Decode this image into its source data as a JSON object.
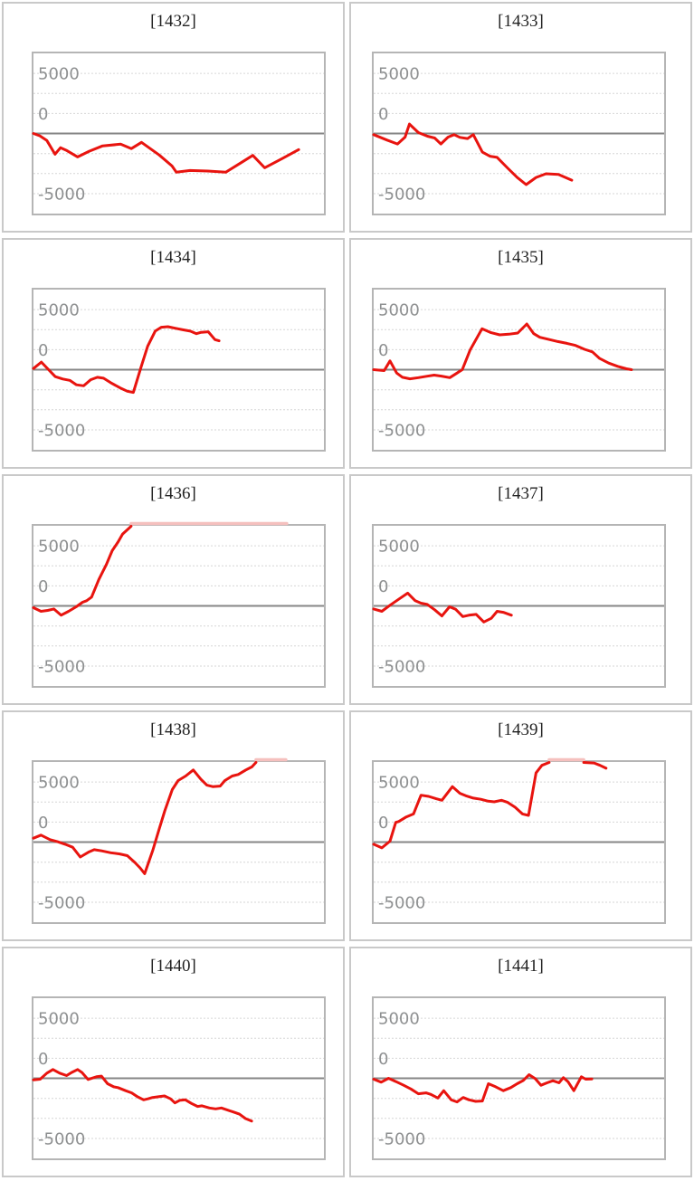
{
  "style": {
    "line_color": "#e8140f",
    "cap_color": "#f5c0be",
    "zero_line_color": "#868686",
    "grid_color": "#d6d6d6",
    "plot_border_color": "#b5b5b5",
    "panel_border_color": "#c9c9c9",
    "tick_color": "#8e9091",
    "title_color": "#222222",
    "background": "#ffffff"
  },
  "axes": {
    "y_tick_labels": [
      "5000",
      "0",
      "-5000"
    ],
    "y_tick_values": [
      5000,
      0,
      -5000
    ],
    "ylim": [
      -6890,
      6890
    ],
    "gridline_count": 7,
    "grid_style": "dotted-horizontal",
    "zero_line": "solid"
  },
  "chart_data": [
    {
      "type": "line",
      "title": "[1432]",
      "segments": [
        [
          [
            0,
            0
          ],
          [
            0.022,
            -200
          ],
          [
            0.046,
            -600
          ],
          [
            0.074,
            -1750
          ],
          [
            0.093,
            -1200
          ],
          [
            0.115,
            -1450
          ],
          [
            0.152,
            -1980
          ],
          [
            0.192,
            -1500
          ],
          [
            0.238,
            -1050
          ],
          [
            0.3,
            -900
          ],
          [
            0.337,
            -1280
          ],
          [
            0.372,
            -750
          ],
          [
            0.433,
            -1820
          ],
          [
            0.477,
            -2750
          ],
          [
            0.492,
            -3280
          ],
          [
            0.539,
            -3130
          ],
          [
            0.6,
            -3180
          ],
          [
            0.662,
            -3280
          ],
          [
            0.712,
            -2510
          ],
          [
            0.755,
            -1850
          ],
          [
            0.796,
            -2900
          ],
          [
            0.858,
            -2100
          ],
          [
            0.913,
            -1360
          ]
        ]
      ],
      "cap_segment": null
    },
    {
      "type": "line",
      "title": "[1433]",
      "segments": [
        [
          [
            0,
            -100
          ],
          [
            0.046,
            -560
          ],
          [
            0.082,
            -890
          ],
          [
            0.108,
            -310
          ],
          [
            0.123,
            800
          ],
          [
            0.154,
            80
          ],
          [
            0.185,
            -230
          ],
          [
            0.21,
            -380
          ],
          [
            0.231,
            -890
          ],
          [
            0.256,
            -310
          ],
          [
            0.277,
            -100
          ],
          [
            0.297,
            -330
          ],
          [
            0.323,
            -430
          ],
          [
            0.343,
            -100
          ],
          [
            0.374,
            -1580
          ],
          [
            0.4,
            -1920
          ],
          [
            0.425,
            -2020
          ],
          [
            0.462,
            -2950
          ],
          [
            0.494,
            -3720
          ],
          [
            0.525,
            -4330
          ],
          [
            0.559,
            -3720
          ],
          [
            0.593,
            -3410
          ],
          [
            0.636,
            -3460
          ],
          [
            0.682,
            -3950
          ]
        ]
      ],
      "cap_segment": null
    },
    {
      "type": "line",
      "title": "[1434]",
      "segments": [
        [
          [
            0,
            100
          ],
          [
            0.027,
            640
          ],
          [
            0.052,
            0
          ],
          [
            0.075,
            -590
          ],
          [
            0.101,
            -790
          ],
          [
            0.125,
            -900
          ],
          [
            0.148,
            -1280
          ],
          [
            0.173,
            -1360
          ],
          [
            0.197,
            -850
          ],
          [
            0.22,
            -640
          ],
          [
            0.241,
            -720
          ],
          [
            0.266,
            -1100
          ],
          [
            0.298,
            -1540
          ],
          [
            0.323,
            -1820
          ],
          [
            0.344,
            -1920
          ],
          [
            0.37,
            200
          ],
          [
            0.393,
            1980
          ],
          [
            0.419,
            3260
          ],
          [
            0.44,
            3590
          ],
          [
            0.463,
            3640
          ],
          [
            0.488,
            3510
          ],
          [
            0.514,
            3380
          ],
          [
            0.54,
            3260
          ],
          [
            0.561,
            3050
          ],
          [
            0.577,
            3160
          ],
          [
            0.602,
            3210
          ],
          [
            0.625,
            2540
          ],
          [
            0.639,
            2440
          ]
        ]
      ],
      "cap_segment": null
    },
    {
      "type": "line",
      "title": "[1435]",
      "segments": [
        [
          [
            0,
            0
          ],
          [
            0.036,
            -80
          ],
          [
            0.056,
            740
          ],
          [
            0.079,
            -280
          ],
          [
            0.099,
            -640
          ],
          [
            0.125,
            -770
          ],
          [
            0.154,
            -670
          ],
          [
            0.182,
            -560
          ],
          [
            0.208,
            -460
          ],
          [
            0.233,
            -540
          ],
          [
            0.262,
            -670
          ],
          [
            0.284,
            -330
          ],
          [
            0.305,
            0
          ],
          [
            0.332,
            1670
          ],
          [
            0.373,
            3460
          ],
          [
            0.404,
            3130
          ],
          [
            0.434,
            2950
          ],
          [
            0.465,
            3000
          ],
          [
            0.496,
            3100
          ],
          [
            0.527,
            3870
          ],
          [
            0.551,
            3050
          ],
          [
            0.572,
            2740
          ],
          [
            0.603,
            2560
          ],
          [
            0.634,
            2380
          ],
          [
            0.665,
            2230
          ],
          [
            0.695,
            2050
          ],
          [
            0.726,
            1720
          ],
          [
            0.753,
            1510
          ],
          [
            0.778,
            950
          ],
          [
            0.809,
            560
          ],
          [
            0.84,
            280
          ],
          [
            0.87,
            80
          ],
          [
            0.888,
            0
          ]
        ]
      ],
      "cap_segment": null
    },
    {
      "type": "line",
      "title": "[1436]",
      "segments": [
        [
          [
            0,
            -150
          ],
          [
            0.026,
            -460
          ],
          [
            0.049,
            -380
          ],
          [
            0.07,
            -260
          ],
          [
            0.095,
            -790
          ],
          [
            0.121,
            -460
          ],
          [
            0.147,
            -80
          ],
          [
            0.169,
            310
          ],
          [
            0.183,
            440
          ],
          [
            0.2,
            740
          ],
          [
            0.225,
            2230
          ],
          [
            0.251,
            3510
          ],
          [
            0.271,
            4670
          ],
          [
            0.292,
            5440
          ],
          [
            0.307,
            6080
          ],
          [
            0.324,
            6460
          ],
          [
            0.336,
            6800
          ]
        ]
      ],
      "cap_segment": [
        0.336,
        0.872
      ]
    },
    {
      "type": "line",
      "title": "[1437]",
      "segments": [
        [
          [
            0,
            -260
          ],
          [
            0.028,
            -460
          ],
          [
            0.056,
            50
          ],
          [
            0.086,
            560
          ],
          [
            0.117,
            1080
          ],
          [
            0.143,
            440
          ],
          [
            0.163,
            230
          ],
          [
            0.184,
            130
          ],
          [
            0.21,
            -330
          ],
          [
            0.235,
            -850
          ],
          [
            0.261,
            -80
          ],
          [
            0.282,
            -280
          ],
          [
            0.307,
            -900
          ],
          [
            0.328,
            -790
          ],
          [
            0.353,
            -720
          ],
          [
            0.379,
            -1360
          ],
          [
            0.405,
            -1050
          ],
          [
            0.425,
            -460
          ],
          [
            0.446,
            -540
          ],
          [
            0.474,
            -790
          ]
        ]
      ],
      "cap_segment": null
    },
    {
      "type": "line",
      "title": "[1438]",
      "segments": [
        [
          [
            0,
            330
          ],
          [
            0.026,
            590
          ],
          [
            0.057,
            210
          ],
          [
            0.083,
            30
          ],
          [
            0.109,
            -180
          ],
          [
            0.135,
            -440
          ],
          [
            0.161,
            -1260
          ],
          [
            0.192,
            -820
          ],
          [
            0.209,
            -640
          ],
          [
            0.235,
            -740
          ],
          [
            0.266,
            -900
          ],
          [
            0.297,
            -1000
          ],
          [
            0.323,
            -1150
          ],
          [
            0.349,
            -1720
          ],
          [
            0.367,
            -2180
          ],
          [
            0.383,
            -2670
          ],
          [
            0.411,
            -690
          ],
          [
            0.431,
            970
          ],
          [
            0.452,
            2640
          ],
          [
            0.478,
            4440
          ],
          [
            0.498,
            5210
          ],
          [
            0.524,
            5590
          ],
          [
            0.55,
            6100
          ],
          [
            0.576,
            5330
          ],
          [
            0.597,
            4820
          ],
          [
            0.617,
            4690
          ],
          [
            0.643,
            4740
          ],
          [
            0.659,
            5210
          ],
          [
            0.684,
            5590
          ],
          [
            0.705,
            5720
          ],
          [
            0.731,
            6100
          ],
          [
            0.752,
            6360
          ],
          [
            0.766,
            6800
          ]
        ]
      ],
      "cap_segment": [
        0.766,
        0.869
      ]
    },
    {
      "type": "line",
      "title": "[1439]",
      "segments": [
        [
          [
            0,
            -180
          ],
          [
            0.028,
            -490
          ],
          [
            0.056,
            80
          ],
          [
            0.076,
            1670
          ],
          [
            0.086,
            1740
          ],
          [
            0.112,
            2130
          ],
          [
            0.137,
            2380
          ],
          [
            0.163,
            3970
          ],
          [
            0.189,
            3870
          ],
          [
            0.215,
            3670
          ],
          [
            0.235,
            3540
          ],
          [
            0.271,
            4690
          ],
          [
            0.297,
            4130
          ],
          [
            0.317,
            3920
          ],
          [
            0.343,
            3720
          ],
          [
            0.369,
            3620
          ],
          [
            0.394,
            3460
          ],
          [
            0.415,
            3410
          ],
          [
            0.44,
            3540
          ],
          [
            0.461,
            3360
          ],
          [
            0.487,
            2950
          ],
          [
            0.512,
            2380
          ],
          [
            0.533,
            2260
          ],
          [
            0.559,
            5850
          ],
          [
            0.579,
            6490
          ],
          [
            0.604,
            6800
          ]
        ],
        [
          [
            0.723,
            6800
          ],
          [
            0.759,
            6690
          ],
          [
            0.779,
            6490
          ],
          [
            0.8,
            6250
          ]
        ]
      ],
      "cap_segment": [
        0.604,
        0.723
      ]
    },
    {
      "type": "line",
      "title": "[1440]",
      "segments": [
        [
          [
            0,
            -130
          ],
          [
            0.023,
            -80
          ],
          [
            0.046,
            440
          ],
          [
            0.067,
            740
          ],
          [
            0.09,
            440
          ],
          [
            0.114,
            230
          ],
          [
            0.131,
            490
          ],
          [
            0.152,
            740
          ],
          [
            0.167,
            490
          ],
          [
            0.188,
            -100
          ],
          [
            0.217,
            130
          ],
          [
            0.234,
            180
          ],
          [
            0.255,
            -460
          ],
          [
            0.276,
            -720
          ],
          [
            0.291,
            -790
          ],
          [
            0.317,
            -1050
          ],
          [
            0.338,
            -1230
          ],
          [
            0.358,
            -1560
          ],
          [
            0.379,
            -1820
          ],
          [
            0.394,
            -1740
          ],
          [
            0.41,
            -1620
          ],
          [
            0.43,
            -1560
          ],
          [
            0.451,
            -1490
          ],
          [
            0.472,
            -1740
          ],
          [
            0.487,
            -2080
          ],
          [
            0.503,
            -1870
          ],
          [
            0.523,
            -1820
          ],
          [
            0.544,
            -2130
          ],
          [
            0.565,
            -2380
          ],
          [
            0.58,
            -2330
          ],
          [
            0.606,
            -2510
          ],
          [
            0.627,
            -2590
          ],
          [
            0.647,
            -2510
          ],
          [
            0.668,
            -2690
          ],
          [
            0.688,
            -2850
          ],
          [
            0.709,
            -3030
          ],
          [
            0.73,
            -3410
          ],
          [
            0.751,
            -3620
          ]
        ]
      ],
      "cap_segment": null
    },
    {
      "type": "line",
      "title": "[1441]",
      "segments": [
        [
          [
            0,
            -80
          ],
          [
            0.026,
            -330
          ],
          [
            0.051,
            0
          ],
          [
            0.077,
            -280
          ],
          [
            0.103,
            -590
          ],
          [
            0.128,
            -900
          ],
          [
            0.154,
            -1310
          ],
          [
            0.18,
            -1230
          ],
          [
            0.197,
            -1360
          ],
          [
            0.221,
            -1670
          ],
          [
            0.241,
            -1050
          ],
          [
            0.267,
            -1820
          ],
          [
            0.287,
            -2000
          ],
          [
            0.308,
            -1620
          ],
          [
            0.328,
            -1820
          ],
          [
            0.351,
            -1950
          ],
          [
            0.374,
            -1920
          ],
          [
            0.395,
            -460
          ],
          [
            0.42,
            -720
          ],
          [
            0.446,
            -1050
          ],
          [
            0.472,
            -790
          ],
          [
            0.494,
            -460
          ],
          [
            0.515,
            -180
          ],
          [
            0.535,
            310
          ],
          [
            0.556,
            -30
          ],
          [
            0.576,
            -590
          ],
          [
            0.597,
            -380
          ],
          [
            0.617,
            -210
          ],
          [
            0.638,
            -380
          ],
          [
            0.653,
            50
          ],
          [
            0.669,
            -280
          ],
          [
            0.689,
            -1050
          ],
          [
            0.715,
            130
          ],
          [
            0.73,
            -80
          ],
          [
            0.751,
            -50
          ]
        ]
      ],
      "cap_segment": null
    }
  ]
}
